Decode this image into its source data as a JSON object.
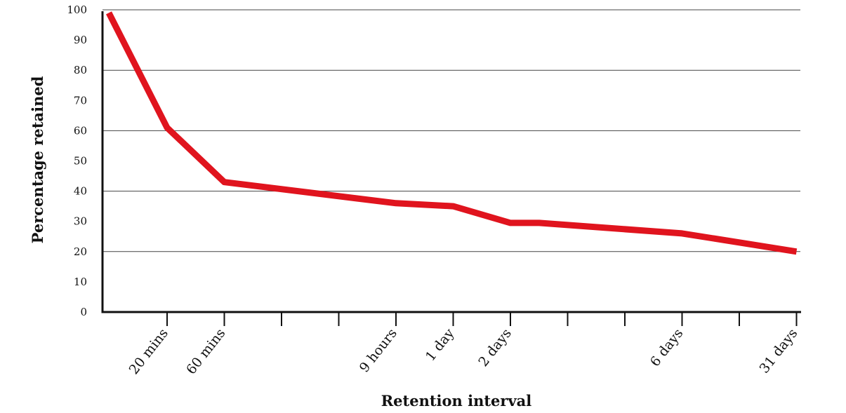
{
  "chart_data": {
    "type": "line",
    "title": "",
    "xlabel": "Retention interval",
    "ylabel": "Percentage retained",
    "ylim": [
      0,
      100
    ],
    "yticks": [
      0,
      10,
      20,
      30,
      40,
      50,
      60,
      70,
      80,
      90,
      100
    ],
    "gridlines_at": [
      20,
      40,
      60,
      80,
      100
    ],
    "grid": "horizontal",
    "x_ticks": [
      {
        "label": "20 mins"
      },
      {
        "label": "60 mins"
      },
      {
        "label": ""
      },
      {
        "label": ""
      },
      {
        "label": "9 hours"
      },
      {
        "label": "1 day"
      },
      {
        "label": "2 days"
      },
      {
        "label": ""
      },
      {
        "label": ""
      },
      {
        "label": "6 days"
      },
      {
        "label": ""
      },
      {
        "label": "31 days"
      }
    ],
    "series": [
      {
        "color": "#e0141e",
        "points": [
          {
            "x": 0,
            "y": 99
          },
          {
            "x": 20,
            "y": 61
          },
          {
            "x": 60,
            "y": 43
          },
          {
            "x": 540,
            "y": 36
          },
          {
            "x": 1440,
            "y": 35
          },
          {
            "x": 2880,
            "y": 29.5
          },
          {
            "x": 3600,
            "y": 29.5
          },
          {
            "x": 8640,
            "y": 26
          },
          {
            "x": 44640,
            "y": 20
          }
        ]
      }
    ]
  }
}
